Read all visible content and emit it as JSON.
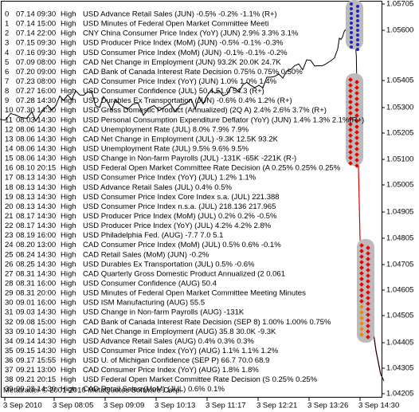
{
  "events": [
    [
      "0",
      "07.14 09:30",
      "High",
      "USD Advance Retail Sales (JUN)  -0.5% -0.2%  -1.1% (R+)"
    ],
    [
      "1",
      "07.14 15:00",
      "High",
      "USD Minutes of Federal Open Market Committee Meeti"
    ],
    [
      "2",
      "07.14 22:00",
      "High",
      "CNY China Consumer Price Index (YoY) (JUN)  2.9% 3.3%  3.1%"
    ],
    [
      "3",
      "07.15 09:30",
      "High",
      "USD Producer Price Index (MoM) (JUN)  -0.5% -0.1% -0.3%"
    ],
    [
      "4",
      "07.16 09:30",
      "High",
      "USD Consumer Price Index (MoM) (JUN)  -0.1% -0.1%  -0.2%"
    ],
    [
      "5",
      "07.09 08:00",
      "High",
      "CAD Net Change in Employment (JUN)  93.2K 20.0K  24.7K"
    ],
    [
      "6",
      "07.20 09:00",
      "High",
      "CAD Bank of Canada Interest Rate Decision  0.75% 0.75%  0.50%"
    ],
    [
      "7",
      "07.23 08:00",
      "High",
      "CAD Consumer Price Index (YoY) (JUN)  1.0% 1.0% 1.4%"
    ],
    [
      "8",
      "07.27 16:00",
      "High",
      "USD Consumer Confidence (JUL)  50.4 51.0 54.3 (R+)"
    ],
    [
      "9",
      "07.28 14:30",
      "High",
      "USD Durables Ex Transportation (JUN)  -0.6% 0.4%  1.2% (R+)"
    ],
    [
      "10",
      "07.30 14:30",
      "High",
      "USD Gross Domestic Product (Annualized) (2Q A)  2.4% 2.6%  3.7% (R+)"
    ],
    [
      "11",
      "08.03 14:30",
      "High",
      "USD Personal Consumption Expenditure Deflator (YoY) (JUN)  1.4% 1.3%  2.1%(R+)"
    ],
    [
      "12",
      "08.06 14:30",
      "High",
      "CAD Unemployment Rate (JUL)  8.0% 7.9%  7.9%"
    ],
    [
      "13",
      "08.06 14:30",
      "High",
      "CAD Net Change in Employment (JUL)  -9.3K 12.5K  93.2K"
    ],
    [
      "14",
      "08.06 14:30",
      "High",
      "USD Unemployment Rate (JUL)  9.5% 9.6%  9.5%"
    ],
    [
      "15",
      "08.06 14:30",
      "High",
      "USD Change in Non-farm Payrolls (JUL)  -131K -65K  -221K (R-)"
    ],
    [
      "16",
      "08.10 20:15",
      "High",
      "USD Federal Open Market Committee Rate Decision (A  0.25% 0.25%  0.25%"
    ],
    [
      "17",
      "08.13 14:30",
      "High",
      "USD Consumer Price Index (YoY) (JUL)  1.2% 1.1%"
    ],
    [
      "18",
      "08.13 14:30",
      "High",
      "USD Advance Retail Sales (JUL)  0.4% 0.5%"
    ],
    [
      "19",
      "08.13 14:30",
      "High",
      "USD Consumer Price Index Core Index s.a. (JUL)       221.388"
    ],
    [
      "20",
      "08.13 14:30",
      "High",
      "USD Consumer Price Index n.s.a. (JUL)  218.136 217.965"
    ],
    [
      "21",
      "08.17 14:30",
      "High",
      "USD Producer Price Index (MoM) (JUL)  0.2% 0.2%  -0.5%"
    ],
    [
      "22",
      "08.17 14:30",
      "High",
      "USD Producer Price Index (YoY) (JUL)  4.2% 4.2%  2.8%"
    ],
    [
      "23",
      "08.19 16:00",
      "High",
      "USD Philadelphia Fed. (AUG)  -7.7 7.0  5.1"
    ],
    [
      "24",
      "08.20 13:00",
      "High",
      "CAD Consumer Price Index (MoM) (JUL)  0.5% 0.6%  -0.1%"
    ],
    [
      "25",
      "08.24 14:30",
      "High",
      "CAD Retail Sales (MoM) (JUN)      -0.2%"
    ],
    [
      "26",
      "08.25 14:30",
      "High",
      "USD Durables Ex Transportation (JUL)  0.5%  -0.6%"
    ],
    [
      "27",
      "08.31 14:30",
      "High",
      "CAD Quarterly Gross Domestic Product Annualized (2      0.061"
    ],
    [
      "28",
      "08.31 16:00",
      "High",
      "USD Consumer Confidence (AUG)      50.4"
    ],
    [
      "29",
      "08.31 20:00",
      "High",
      "USD Minutes of Federal Open Market Committee Meeting Minutes"
    ],
    [
      "30",
      "09.01 16:00",
      "High",
      "USD ISM Manufacturing (AUG)      55.5"
    ],
    [
      "31",
      "09.03 14:30",
      "High",
      "USD Change in Non-farm Payrolls (AUG)      -131K"
    ],
    [
      "32",
      "09.08 15:00",
      "High",
      "CAD Bank of Canada Interest Rate Decision (SEP 8)  1.00% 1.00%  0.75%"
    ],
    [
      "33",
      "09.10 14:30",
      "High",
      "CAD Net Change in Employment (AUG)  35.8 30.0K  -9.3K"
    ],
    [
      "34",
      "09.14 14:30",
      "High",
      "USD Advance Retail Sales (AUG)  0.4% 0.3%  0.3%"
    ],
    [
      "35",
      "09.15 14:30",
      "High",
      "USD Consumer Price Index (YoY) (AUG)  1.1% 1.1%  1.2%"
    ],
    [
      "36",
      "09.17 15:55",
      "High",
      "USD U. of Michigan Confidence (SEP P)  66.7 70.0  68.9"
    ],
    [
      "37",
      "09.21 13:00",
      "High",
      "CAD Consumer Price Index (YoY) (AUG)  1.8% 1.8%"
    ],
    [
      "38",
      "09.21 20:15",
      "High",
      "USD Federal Open Market Committee Rate Decision (S   0.25% 0.25%"
    ],
    [
      "39",
      "09.23 14:30",
      "High",
      "CAD Retail Sales (MoM) (JUL)  0.6%  0.1%"
    ]
  ],
  "price_axis": [
    "1.05705",
    "1.05600",
    "1.05405",
    "1.05300",
    "1.05205",
    "1.05100",
    "1.05005",
    "1.04905",
    "1.04805",
    "1.04705",
    "1.04605",
    "1.04505",
    "1.04405",
    "1.04305",
    "1.04205"
  ],
  "time_axis": [
    "3 Sep 2010",
    "3 Sep 08:05",
    "3 Sep 09:09",
    "3 Sep 10:13",
    "3 Sep 11:17",
    "3 Sep 12:21",
    "3 Sep 13:26",
    "3 Sep 14:30"
  ],
  "copyright": "Metatrader © 2001-2010 MetaQuotes Software Corp."
}
